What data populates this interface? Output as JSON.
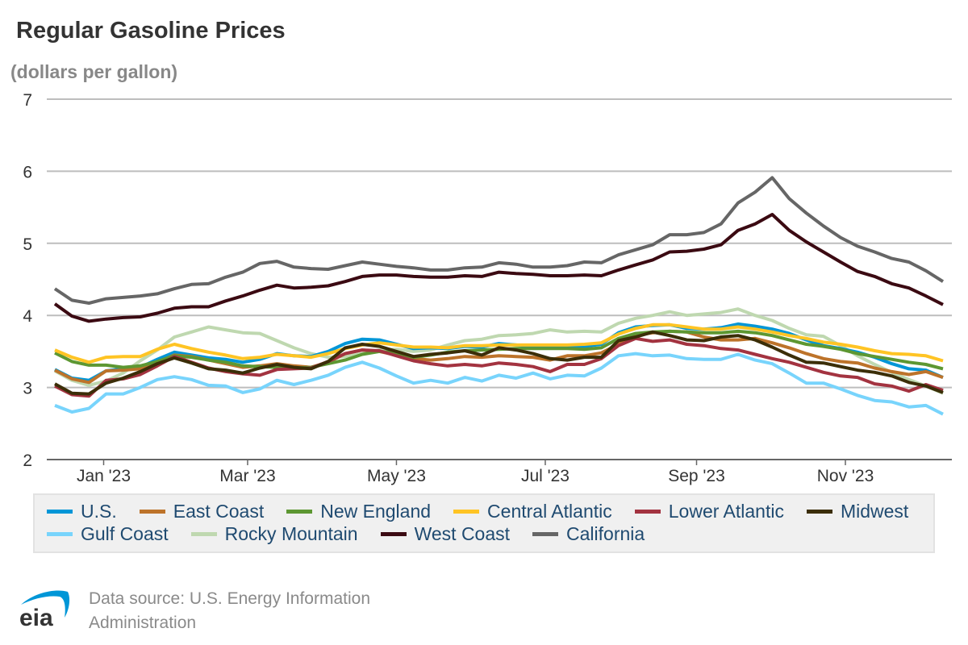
{
  "chart_data": {
    "type": "line",
    "title": "Regular Gasoline Prices",
    "subtitle": "(dollars per gallon)",
    "ylim": [
      2,
      7
    ],
    "yticks": [
      2,
      3,
      4,
      5,
      6,
      7
    ],
    "xtick_labels": [
      "Jan '23",
      "Mar '23",
      "May '23",
      "Jul '23",
      "Sep '23",
      "Nov '23"
    ],
    "grid": true,
    "legend_placement": "bottom",
    "series": [
      {
        "name": "U.S.",
        "color": "#0096D7",
        "values": [
          3.25,
          3.13,
          3.1,
          3.23,
          3.26,
          3.28,
          3.39,
          3.49,
          3.45,
          3.41,
          3.39,
          3.35,
          3.39,
          3.47,
          3.44,
          3.43,
          3.5,
          3.61,
          3.67,
          3.66,
          3.6,
          3.54,
          3.55,
          3.54,
          3.57,
          3.56,
          3.61,
          3.59,
          3.57,
          3.57,
          3.58,
          3.57,
          3.6,
          3.76,
          3.84,
          3.86,
          3.87,
          3.82,
          3.81,
          3.83,
          3.88,
          3.85,
          3.81,
          3.75,
          3.66,
          3.58,
          3.54,
          3.49,
          3.42,
          3.33,
          3.26,
          3.24,
          3.14
        ]
      },
      {
        "name": "East Coast",
        "color": "#BD732A",
        "values": [
          3.24,
          3.12,
          3.07,
          3.23,
          3.24,
          3.26,
          3.35,
          3.45,
          3.43,
          3.38,
          3.33,
          3.28,
          3.3,
          3.33,
          3.3,
          3.28,
          3.35,
          3.47,
          3.52,
          3.5,
          3.45,
          3.4,
          3.38,
          3.4,
          3.43,
          3.42,
          3.44,
          3.43,
          3.42,
          3.38,
          3.44,
          3.44,
          3.48,
          3.6,
          3.72,
          3.76,
          3.78,
          3.77,
          3.7,
          3.66,
          3.66,
          3.68,
          3.62,
          3.55,
          3.47,
          3.4,
          3.36,
          3.34,
          3.27,
          3.22,
          3.18,
          3.22,
          3.14
        ]
      },
      {
        "name": "New England",
        "color": "#5D9732",
        "values": [
          3.48,
          3.36,
          3.31,
          3.31,
          3.28,
          3.3,
          3.36,
          3.44,
          3.42,
          3.38,
          3.35,
          3.3,
          3.29,
          3.28,
          3.27,
          3.28,
          3.33,
          3.38,
          3.46,
          3.5,
          3.48,
          3.42,
          3.45,
          3.49,
          3.51,
          3.52,
          3.53,
          3.54,
          3.54,
          3.54,
          3.54,
          3.53,
          3.55,
          3.68,
          3.75,
          3.77,
          3.78,
          3.77,
          3.76,
          3.76,
          3.78,
          3.76,
          3.72,
          3.66,
          3.6,
          3.57,
          3.53,
          3.47,
          3.43,
          3.39,
          3.35,
          3.32,
          3.26
        ]
      },
      {
        "name": "Central Atlantic",
        "color": "#FFC424",
        "values": [
          3.52,
          3.42,
          3.35,
          3.42,
          3.43,
          3.43,
          3.53,
          3.6,
          3.54,
          3.49,
          3.45,
          3.4,
          3.42,
          3.46,
          3.44,
          3.42,
          3.47,
          3.54,
          3.59,
          3.62,
          3.59,
          3.56,
          3.56,
          3.55,
          3.58,
          3.58,
          3.59,
          3.59,
          3.59,
          3.59,
          3.59,
          3.6,
          3.62,
          3.74,
          3.82,
          3.87,
          3.87,
          3.84,
          3.81,
          3.81,
          3.84,
          3.81,
          3.77,
          3.72,
          3.68,
          3.63,
          3.6,
          3.56,
          3.51,
          3.47,
          3.46,
          3.44,
          3.37
        ]
      },
      {
        "name": "Lower Atlantic",
        "color": "#A33340",
        "values": [
          3.02,
          2.9,
          2.88,
          3.1,
          3.12,
          3.18,
          3.3,
          3.43,
          3.35,
          3.27,
          3.22,
          3.19,
          3.17,
          3.25,
          3.26,
          3.27,
          3.36,
          3.47,
          3.52,
          3.51,
          3.44,
          3.37,
          3.33,
          3.3,
          3.32,
          3.3,
          3.34,
          3.32,
          3.29,
          3.22,
          3.32,
          3.32,
          3.4,
          3.58,
          3.68,
          3.64,
          3.66,
          3.6,
          3.58,
          3.54,
          3.52,
          3.46,
          3.4,
          3.35,
          3.28,
          3.21,
          3.16,
          3.14,
          3.05,
          3.02,
          2.95,
          3.04,
          2.96
        ]
      },
      {
        "name": "Midwest",
        "color": "#3B2E08",
        "values": [
          3.05,
          2.92,
          2.91,
          3.06,
          3.13,
          3.22,
          3.33,
          3.41,
          3.34,
          3.26,
          3.24,
          3.2,
          3.27,
          3.32,
          3.28,
          3.26,
          3.36,
          3.55,
          3.6,
          3.57,
          3.5,
          3.43,
          3.46,
          3.48,
          3.51,
          3.45,
          3.55,
          3.52,
          3.47,
          3.4,
          3.38,
          3.42,
          3.42,
          3.65,
          3.7,
          3.77,
          3.72,
          3.66,
          3.65,
          3.7,
          3.72,
          3.66,
          3.56,
          3.45,
          3.35,
          3.34,
          3.29,
          3.24,
          3.21,
          3.16,
          3.07,
          3.02,
          2.93
        ]
      },
      {
        "name": "Gulf Coast",
        "color": "#78D4FC",
        "values": [
          2.75,
          2.66,
          2.71,
          2.91,
          2.91,
          3.0,
          3.11,
          3.15,
          3.11,
          3.03,
          3.02,
          2.93,
          2.98,
          3.1,
          3.04,
          3.1,
          3.17,
          3.28,
          3.35,
          3.27,
          3.16,
          3.06,
          3.1,
          3.06,
          3.14,
          3.09,
          3.17,
          3.13,
          3.2,
          3.12,
          3.17,
          3.16,
          3.27,
          3.44,
          3.47,
          3.44,
          3.45,
          3.4,
          3.39,
          3.39,
          3.46,
          3.38,
          3.33,
          3.2,
          3.06,
          3.06,
          2.98,
          2.89,
          2.82,
          2.8,
          2.73,
          2.75,
          2.63
        ]
      },
      {
        "name": "Rocky Mountain",
        "color": "#BFD8B0",
        "values": [
          3.23,
          3.1,
          3.03,
          3.09,
          3.2,
          3.37,
          3.52,
          3.7,
          3.77,
          3.84,
          3.8,
          3.76,
          3.75,
          3.65,
          3.55,
          3.47,
          3.42,
          3.43,
          3.47,
          3.52,
          3.53,
          3.5,
          3.52,
          3.59,
          3.65,
          3.67,
          3.72,
          3.73,
          3.75,
          3.8,
          3.77,
          3.78,
          3.77,
          3.89,
          3.96,
          4.0,
          4.05,
          4.0,
          4.02,
          4.04,
          4.09,
          4.0,
          3.93,
          3.82,
          3.73,
          3.71,
          3.58,
          3.44,
          3.32,
          3.21,
          3.11,
          3.02,
          2.92
        ]
      },
      {
        "name": "West Coast",
        "color": "#3B0A12",
        "values": [
          4.16,
          3.99,
          3.92,
          3.95,
          3.97,
          3.98,
          4.03,
          4.1,
          4.12,
          4.12,
          4.2,
          4.27,
          4.35,
          4.42,
          4.38,
          4.39,
          4.41,
          4.47,
          4.54,
          4.56,
          4.56,
          4.54,
          4.53,
          4.53,
          4.55,
          4.54,
          4.6,
          4.58,
          4.57,
          4.55,
          4.55,
          4.56,
          4.55,
          4.63,
          4.7,
          4.77,
          4.88,
          4.89,
          4.92,
          4.98,
          5.18,
          5.27,
          5.4,
          5.18,
          5.02,
          4.88,
          4.74,
          4.61,
          4.54,
          4.44,
          4.38,
          4.27,
          4.15
        ]
      },
      {
        "name": "California",
        "color": "#666666",
        "values": [
          4.37,
          4.21,
          4.17,
          4.23,
          4.25,
          4.27,
          4.3,
          4.37,
          4.43,
          4.44,
          4.53,
          4.6,
          4.72,
          4.75,
          4.67,
          4.65,
          4.64,
          4.69,
          4.74,
          4.71,
          4.68,
          4.66,
          4.63,
          4.63,
          4.66,
          4.67,
          4.73,
          4.71,
          4.67,
          4.67,
          4.69,
          4.74,
          4.73,
          4.84,
          4.91,
          4.98,
          5.12,
          5.12,
          5.15,
          5.27,
          5.56,
          5.71,
          5.91,
          5.62,
          5.42,
          5.24,
          5.08,
          4.96,
          4.88,
          4.79,
          4.74,
          4.62,
          4.47
        ]
      }
    ]
  },
  "footer": {
    "logo_text": "eia",
    "source": "Data source: U.S. Energy Information Administration"
  }
}
